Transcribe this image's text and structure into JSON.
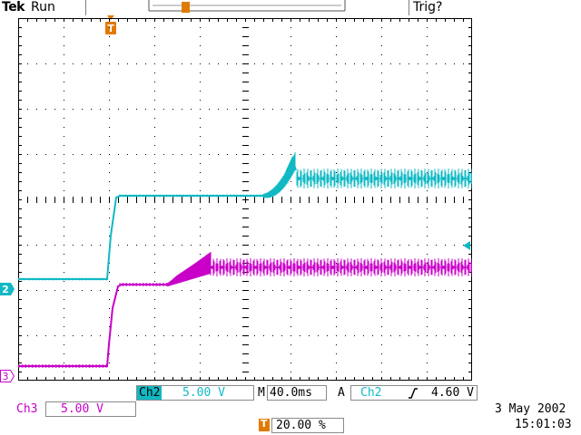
{
  "header": {
    "brand": "Tek",
    "status": "Run",
    "trigger_status": "Trig?"
  },
  "markers": {
    "trigger_pos": "T",
    "ch2": "2",
    "ch3": "3"
  },
  "channels": {
    "ch2": {
      "label": "Ch2",
      "scale": "5.00 V",
      "color": "#10b9c4"
    },
    "ch3": {
      "label": "Ch3",
      "scale": "5.00 V",
      "color": "#c800c8"
    }
  },
  "timebase": {
    "label": "M",
    "value": "40.0ms"
  },
  "trigger": {
    "mode": "A",
    "source": "Ch2",
    "slope_icon": "rising-edge-icon",
    "level": "4.60 V",
    "position": "20.00 %"
  },
  "datetime": {
    "date": "3 May 2002",
    "time": "15:01:03"
  },
  "colors": {
    "trigger_marker": "#e07a00",
    "grid": "#000000",
    "ch2": "#10b9c4",
    "ch3": "#c800c8"
  }
}
